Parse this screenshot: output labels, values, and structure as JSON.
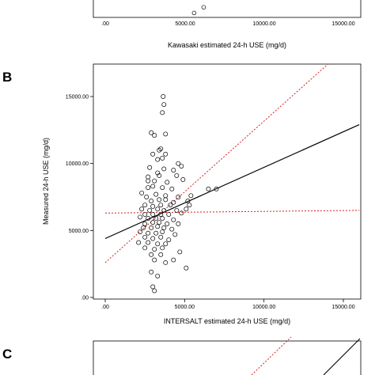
{
  "panels": [
    {
      "label": "B"
    },
    {
      "label": "C"
    }
  ],
  "chart_data": [
    {
      "type": "scatter",
      "panel": "A (partial, top cropped)",
      "xlabel": "Kawasaki estimated 24-h USE (mg/d)",
      "x_ticks": [
        ".00",
        "5000.00",
        "10000.00",
        "15000.00"
      ],
      "points": [
        [
          5600,
          300
        ],
        [
          6200,
          900
        ]
      ]
    },
    {
      "type": "scatter",
      "panel": "B",
      "xlabel": "INTERSALT estimated 24-h USE (mg/d)",
      "ylabel": "Measured 24-h USE (mg/d)",
      "xlim": [
        0,
        16000
      ],
      "ylim": [
        0,
        16000
      ],
      "x_ticks": [
        ".00",
        "5000.00",
        "10000.00",
        "15000.00"
      ],
      "y_ticks": [
        ".00",
        "5000.00",
        "10000.00",
        "15000.00"
      ],
      "grid": false,
      "points": [
        [
          3650,
          15000
        ],
        [
          3700,
          14400
        ],
        [
          3600,
          13800
        ],
        [
          2900,
          12300
        ],
        [
          3100,
          12100
        ],
        [
          3800,
          12200
        ],
        [
          3400,
          11000
        ],
        [
          3500,
          11100
        ],
        [
          3000,
          10700
        ],
        [
          3800,
          10700
        ],
        [
          3300,
          10300
        ],
        [
          3600,
          10400
        ],
        [
          4600,
          10000
        ],
        [
          3700,
          9600
        ],
        [
          2800,
          9700
        ],
        [
          4800,
          9800
        ],
        [
          3300,
          9300
        ],
        [
          4300,
          9500
        ],
        [
          2700,
          9000
        ],
        [
          3400,
          9100
        ],
        [
          4500,
          9100
        ],
        [
          2700,
          8700
        ],
        [
          3100,
          8700
        ],
        [
          3900,
          8600
        ],
        [
          4900,
          8800
        ],
        [
          2700,
          8200
        ],
        [
          3000,
          8300
        ],
        [
          3600,
          8200
        ],
        [
          4200,
          8100
        ],
        [
          6500,
          8100
        ],
        [
          7000,
          8100
        ],
        [
          2300,
          7800
        ],
        [
          3200,
          7700
        ],
        [
          3800,
          7600
        ],
        [
          4600,
          7500
        ],
        [
          5400,
          7600
        ],
        [
          2600,
          7500
        ],
        [
          2900,
          7200
        ],
        [
          3400,
          7300
        ],
        [
          3800,
          7300
        ],
        [
          4300,
          7100
        ],
        [
          5200,
          7200
        ],
        [
          2500,
          6900
        ],
        [
          3000,
          6800
        ],
        [
          3500,
          6900
        ],
        [
          4100,
          6900
        ],
        [
          5300,
          6900
        ],
        [
          2300,
          6600
        ],
        [
          2800,
          6500
        ],
        [
          3300,
          6600
        ],
        [
          3700,
          6500
        ],
        [
          4500,
          6500
        ],
        [
          5100,
          6600
        ],
        [
          2500,
          6200
        ],
        [
          3000,
          6200
        ],
        [
          3500,
          6200
        ],
        [
          4000,
          6200
        ],
        [
          4800,
          6300
        ],
        [
          2200,
          6000
        ],
        [
          2700,
          5900
        ],
        [
          3200,
          5900
        ],
        [
          3600,
          5900
        ],
        [
          4300,
          5800
        ],
        [
          2500,
          5500
        ],
        [
          3000,
          5600
        ],
        [
          3400,
          5600
        ],
        [
          3900,
          5500
        ],
        [
          4600,
          5500
        ],
        [
          2400,
          5200
        ],
        [
          2900,
          5200
        ],
        [
          3300,
          5300
        ],
        [
          3700,
          5200
        ],
        [
          4200,
          5100
        ],
        [
          2200,
          4900
        ],
        [
          2700,
          4800
        ],
        [
          3200,
          4800
        ],
        [
          3600,
          4900
        ],
        [
          4400,
          4700
        ],
        [
          2500,
          4500
        ],
        [
          3000,
          4400
        ],
        [
          3500,
          4500
        ],
        [
          4000,
          4300
        ],
        [
          2100,
          4100
        ],
        [
          2700,
          4100
        ],
        [
          3300,
          4000
        ],
        [
          3800,
          4000
        ],
        [
          2500,
          3700
        ],
        [
          3100,
          3600
        ],
        [
          3600,
          3700
        ],
        [
          4700,
          3400
        ],
        [
          2900,
          3200
        ],
        [
          3500,
          3200
        ],
        [
          3100,
          2800
        ],
        [
          3800,
          2600
        ],
        [
          4300,
          2800
        ],
        [
          2900,
          1900
        ],
        [
          3300,
          1600
        ],
        [
          5100,
          2200
        ],
        [
          3000,
          800
        ],
        [
          3100,
          500
        ]
      ],
      "fit_line": {
        "x": [
          0,
          16000
        ],
        "y": [
          4400,
          12900
        ]
      },
      "ci_lines": [
        {
          "x": [
            0,
            16000
          ],
          "y": [
            6300,
            6500
          ]
        },
        {
          "x": [
            0,
            16000
          ],
          "y": [
            2600,
            19500
          ]
        }
      ]
    },
    {
      "type": "scatter",
      "panel": "C (partial, bottom cropped)",
      "points": []
    }
  ]
}
